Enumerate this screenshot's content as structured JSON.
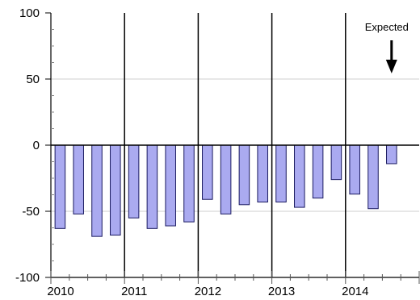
{
  "chart_data": {
    "type": "bar",
    "title": "",
    "xlabel": "",
    "ylabel": "",
    "ylim": [
      -100,
      100
    ],
    "y_ticks": [
      100,
      50,
      0,
      -50,
      -100
    ],
    "x_tick_labels": [
      "2010",
      "2011",
      "2012",
      "2013",
      "2014"
    ],
    "categories": [
      "2010Q1",
      "2010Q2",
      "2010Q3",
      "2010Q4",
      "2011Q1",
      "2011Q2",
      "2011Q3",
      "2011Q4",
      "2012Q1",
      "2012Q2",
      "2012Q3",
      "2012Q4",
      "2013Q1",
      "2013Q2",
      "2013Q3",
      "2013Q4",
      "2014Q1",
      "2014Q2",
      "2014Q3"
    ],
    "values": [
      -63,
      -52,
      -69,
      -68,
      -55,
      -63,
      -61,
      -58,
      -41,
      -52,
      -45,
      -43,
      -43,
      -47,
      -40,
      -26,
      -37,
      -48,
      -14
    ],
    "bar_color": "#aaaaf0",
    "bar_edge_color": "#1a1a60",
    "grid": true,
    "annotations": [
      {
        "text": "Expected",
        "target_index": 18,
        "arrow": "down"
      }
    ]
  }
}
